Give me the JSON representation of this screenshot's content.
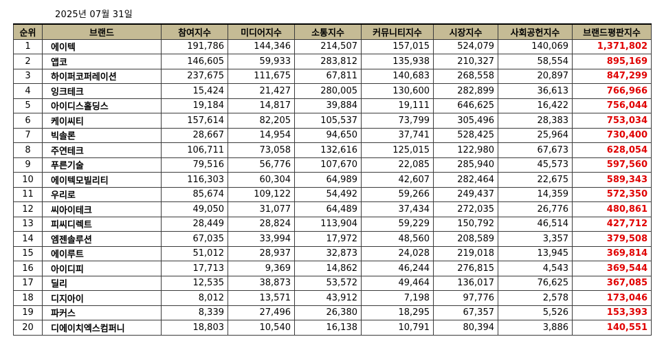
{
  "date": "2025년 07월 31일",
  "columns": [
    "순위",
    "브랜드",
    "참여지수",
    "미디어지수",
    "소통지수",
    "커뮤니티지수",
    "시장지수",
    "사회공헌지수",
    "브랜드평판지수"
  ],
  "rows": [
    [
      "1",
      "에이텍",
      "191,786",
      "144,346",
      "214,507",
      "157,015",
      "524,079",
      "140,069",
      "1,371,802"
    ],
    [
      "2",
      "앱코",
      "146,605",
      "59,933",
      "283,812",
      "135,938",
      "210,327",
      "58,554",
      "895,169"
    ],
    [
      "3",
      "하이퍼코퍼레이션",
      "237,675",
      "111,675",
      "67,811",
      "140,683",
      "268,558",
      "20,897",
      "847,299"
    ],
    [
      "4",
      "잉크테크",
      "15,424",
      "21,427",
      "280,005",
      "130,600",
      "282,899",
      "36,613",
      "766,966"
    ],
    [
      "5",
      "아이디스홀딩스",
      "19,184",
      "14,817",
      "39,884",
      "19,111",
      "646,625",
      "16,422",
      "756,044"
    ],
    [
      "6",
      "케이씨티",
      "157,614",
      "82,205",
      "105,537",
      "73,799",
      "305,496",
      "28,383",
      "753,034"
    ],
    [
      "7",
      "빅솔론",
      "28,667",
      "14,954",
      "94,650",
      "37,741",
      "528,425",
      "25,964",
      "730,400"
    ],
    [
      "8",
      "주연테크",
      "106,711",
      "73,058",
      "132,616",
      "125,015",
      "122,980",
      "67,673",
      "628,054"
    ],
    [
      "9",
      "푸른기술",
      "79,516",
      "56,776",
      "107,670",
      "22,085",
      "285,940",
      "45,573",
      "597,560"
    ],
    [
      "10",
      "에이텍모빌리티",
      "116,303",
      "60,304",
      "64,989",
      "42,607",
      "282,464",
      "22,675",
      "589,343"
    ],
    [
      "11",
      "우리로",
      "85,674",
      "109,122",
      "54,492",
      "59,266",
      "249,437",
      "14,359",
      "572,350"
    ],
    [
      "12",
      "씨아이테크",
      "49,050",
      "31,077",
      "64,489",
      "37,434",
      "272,035",
      "26,776",
      "480,861"
    ],
    [
      "13",
      "피씨디렉트",
      "28,449",
      "28,824",
      "113,904",
      "59,229",
      "150,792",
      "46,514",
      "427,712"
    ],
    [
      "14",
      "엠젠솔루션",
      "67,035",
      "33,994",
      "17,972",
      "48,560",
      "208,589",
      "3,357",
      "379,508"
    ],
    [
      "15",
      "에이루트",
      "51,012",
      "28,937",
      "32,873",
      "24,028",
      "219,018",
      "13,945",
      "369,814"
    ],
    [
      "16",
      "아이디피",
      "17,713",
      "9,369",
      "14,862",
      "46,244",
      "276,815",
      "4,543",
      "369,544"
    ],
    [
      "17",
      "딜리",
      "12,535",
      "38,873",
      "53,572",
      "49,464",
      "136,017",
      "76,625",
      "367,085"
    ],
    [
      "18",
      "디지아이",
      "8,012",
      "13,571",
      "43,912",
      "7,198",
      "97,776",
      "2,578",
      "173,046"
    ],
    [
      "19",
      "파커스",
      "8,339",
      "27,496",
      "26,380",
      "18,295",
      "67,357",
      "5,526",
      "153,393"
    ],
    [
      "20",
      "디에이치엑스컴퍼니",
      "18,803",
      "10,540",
      "16,138",
      "10,791",
      "80,394",
      "3,886",
      "140,551"
    ]
  ]
}
